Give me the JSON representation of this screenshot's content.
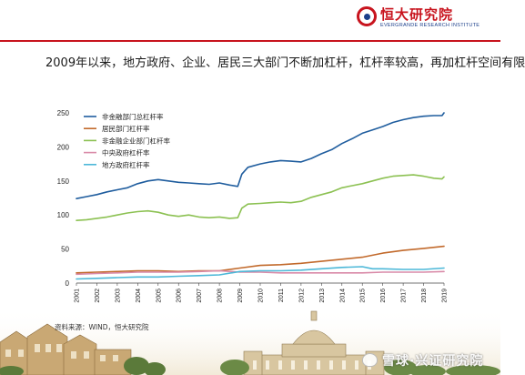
{
  "header": {
    "logo_cn": "恒大研究院",
    "logo_en": "EVERGRANDE RESEARCH INSTITUTE",
    "accent_color": "#c8141e",
    "brand_blue": "#1b3f8b"
  },
  "slide": {
    "title": "2009年以来，地方政府、企业、居民三大部门不断加杠杆，杠杆率较高，再加杠杆空间有限"
  },
  "footer": {
    "source": "资料来源：WIND，恒大研究院",
    "watermark": "雪球·兴证研究院"
  },
  "chart_data": {
    "type": "line",
    "title": "",
    "xlabel": "",
    "ylabel": "",
    "x_tick_labels": [
      "2001",
      "2002",
      "2003",
      "2004",
      "2005",
      "2006",
      "2007",
      "2008",
      "2009",
      "2010",
      "2011",
      "2012",
      "2013",
      "2014",
      "2015",
      "2016",
      "2017",
      "2018",
      "2019"
    ],
    "x_range": [
      2001,
      2019
    ],
    "ylim": [
      0,
      250
    ],
    "y_ticks": [
      0,
      50,
      100,
      150,
      200,
      250
    ],
    "grid": false,
    "legend_position": "top-left",
    "series": [
      {
        "name": "非金融部门总杠杆率",
        "color": "#1f5d9e",
        "points": [
          [
            2001,
            124
          ],
          [
            2001.5,
            127
          ],
          [
            2002,
            130
          ],
          [
            2002.5,
            134
          ],
          [
            2003,
            137
          ],
          [
            2003.5,
            140
          ],
          [
            2004,
            146
          ],
          [
            2004.5,
            150
          ],
          [
            2005,
            152
          ],
          [
            2005.5,
            150
          ],
          [
            2006,
            148
          ],
          [
            2006.5,
            147
          ],
          [
            2007,
            146
          ],
          [
            2007.5,
            145
          ],
          [
            2008,
            147
          ],
          [
            2008.5,
            144
          ],
          [
            2008.9,
            142
          ],
          [
            2009.1,
            160
          ],
          [
            2009.4,
            170
          ],
          [
            2010,
            175
          ],
          [
            2010.5,
            178
          ],
          [
            2011,
            180
          ],
          [
            2011.5,
            179
          ],
          [
            2012,
            178
          ],
          [
            2012.5,
            183
          ],
          [
            2013,
            190
          ],
          [
            2013.5,
            196
          ],
          [
            2014,
            205
          ],
          [
            2014.5,
            212
          ],
          [
            2015,
            220
          ],
          [
            2015.5,
            225
          ],
          [
            2016,
            230
          ],
          [
            2016.5,
            236
          ],
          [
            2017,
            240
          ],
          [
            2017.5,
            243
          ],
          [
            2018,
            245
          ],
          [
            2018.5,
            246
          ],
          [
            2018.9,
            246
          ],
          [
            2019,
            250
          ]
        ]
      },
      {
        "name": "居民部门杠杆率",
        "color": "#c26a2c",
        "points": [
          [
            2001,
            15
          ],
          [
            2002,
            16
          ],
          [
            2003,
            17
          ],
          [
            2004,
            18
          ],
          [
            2005,
            18
          ],
          [
            2006,
            17
          ],
          [
            2007,
            18
          ],
          [
            2008,
            18
          ],
          [
            2009,
            22
          ],
          [
            2010,
            26
          ],
          [
            2011,
            27
          ],
          [
            2012,
            29
          ],
          [
            2013,
            32
          ],
          [
            2014,
            35
          ],
          [
            2015,
            38
          ],
          [
            2016,
            44
          ],
          [
            2017,
            48
          ],
          [
            2018,
            51
          ],
          [
            2019,
            54
          ]
        ]
      },
      {
        "name": "非金融企业部门杠杆率",
        "color": "#8cc152",
        "points": [
          [
            2001,
            92
          ],
          [
            2001.5,
            93
          ],
          [
            2002,
            95
          ],
          [
            2002.5,
            97
          ],
          [
            2003,
            100
          ],
          [
            2003.5,
            103
          ],
          [
            2004,
            105
          ],
          [
            2004.5,
            106
          ],
          [
            2005,
            104
          ],
          [
            2005.5,
            100
          ],
          [
            2006,
            98
          ],
          [
            2006.5,
            100
          ],
          [
            2007,
            97
          ],
          [
            2007.5,
            96
          ],
          [
            2008,
            97
          ],
          [
            2008.5,
            95
          ],
          [
            2008.9,
            96
          ],
          [
            2009.1,
            110
          ],
          [
            2009.4,
            116
          ],
          [
            2010,
            117
          ],
          [
            2010.5,
            118
          ],
          [
            2011,
            119
          ],
          [
            2011.5,
            118
          ],
          [
            2012,
            120
          ],
          [
            2012.5,
            126
          ],
          [
            2013,
            130
          ],
          [
            2013.5,
            134
          ],
          [
            2014,
            140
          ],
          [
            2014.5,
            143
          ],
          [
            2015,
            146
          ],
          [
            2015.5,
            150
          ],
          [
            2016,
            154
          ],
          [
            2016.5,
            157
          ],
          [
            2017,
            158
          ],
          [
            2017.5,
            159
          ],
          [
            2018,
            157
          ],
          [
            2018.5,
            154
          ],
          [
            2018.9,
            153
          ],
          [
            2019,
            156
          ]
        ]
      },
      {
        "name": "中央政府杠杆率",
        "color": "#d98aa8",
        "points": [
          [
            2001,
            13
          ],
          [
            2002,
            14
          ],
          [
            2003,
            15
          ],
          [
            2004,
            16
          ],
          [
            2005,
            16
          ],
          [
            2006,
            16
          ],
          [
            2007,
            17
          ],
          [
            2008,
            18
          ],
          [
            2009,
            16
          ],
          [
            2010,
            16
          ],
          [
            2011,
            15
          ],
          [
            2012,
            15
          ],
          [
            2013,
            15
          ],
          [
            2014,
            15
          ],
          [
            2015,
            15
          ],
          [
            2016,
            16
          ],
          [
            2017,
            16
          ],
          [
            2018,
            16
          ],
          [
            2019,
            17
          ]
        ]
      },
      {
        "name": "地方政府杠杆率",
        "color": "#4cb8d8",
        "points": [
          [
            2001,
            6
          ],
          [
            2002,
            7
          ],
          [
            2003,
            8
          ],
          [
            2004,
            9
          ],
          [
            2005,
            9
          ],
          [
            2006,
            10
          ],
          [
            2007,
            11
          ],
          [
            2008,
            12
          ],
          [
            2009,
            17
          ],
          [
            2010,
            18
          ],
          [
            2011,
            18
          ],
          [
            2012,
            19
          ],
          [
            2013,
            21
          ],
          [
            2014,
            23
          ],
          [
            2015,
            24
          ],
          [
            2015.5,
            21
          ],
          [
            2016,
            21
          ],
          [
            2017,
            20
          ],
          [
            2018,
            20
          ],
          [
            2019,
            22
          ]
        ]
      }
    ]
  }
}
